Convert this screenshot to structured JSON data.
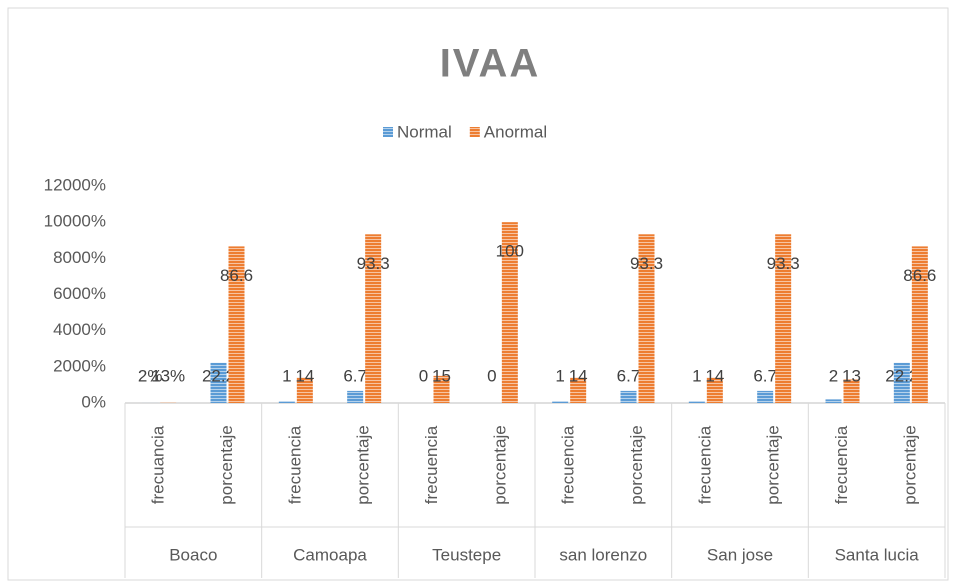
{
  "chart_data": {
    "type": "bar",
    "title": "IVAA",
    "groups": [
      "Boaco",
      "Camoapa",
      "Teustepe",
      "san lorenzo",
      "San jose",
      "Santa lucia"
    ],
    "categories": [
      "frecuancia",
      "porcentaje",
      "frecuencia",
      "porcentaje",
      "frecuencia",
      "porcentaje",
      "frecuencia",
      "porcentaje",
      "frecuencia",
      "porcentaje",
      "frecuencia",
      "porcentaje"
    ],
    "series": [
      {
        "name": "Normal",
        "color": "#5b9bd5",
        "values": [
          0.02,
          22.2,
          1,
          6.7,
          0,
          0,
          1,
          6.7,
          1,
          6.7,
          2,
          22.2
        ],
        "value_labels": [
          "2%",
          "22.2",
          "1",
          "6.7",
          "0",
          "0",
          "1",
          "6.7",
          "1",
          "6.7",
          "2",
          "22.2"
        ]
      },
      {
        "name": "Anormal",
        "color": "#ed7d31",
        "values": [
          0.13,
          86.6,
          14,
          93.3,
          15,
          100,
          14,
          93.3,
          14,
          93.3,
          13,
          86.6
        ],
        "value_labels": [
          "13%",
          "86.6",
          "14",
          "93.3",
          "15",
          "100",
          "14",
          "93.3",
          "14",
          "93.3",
          "13",
          "86.6"
        ]
      }
    ],
    "ylim": [
      0,
      120
    ],
    "yticks": [
      {
        "value": 0,
        "label": "0%"
      },
      {
        "value": 20,
        "label": "2000%"
      },
      {
        "value": 40,
        "label": "4000%"
      },
      {
        "value": 60,
        "label": "6000%"
      },
      {
        "value": 80,
        "label": "8000%"
      },
      {
        "value": 100,
        "label": "10000%"
      },
      {
        "value": 120,
        "label": "12000%"
      }
    ],
    "legend": "top"
  }
}
